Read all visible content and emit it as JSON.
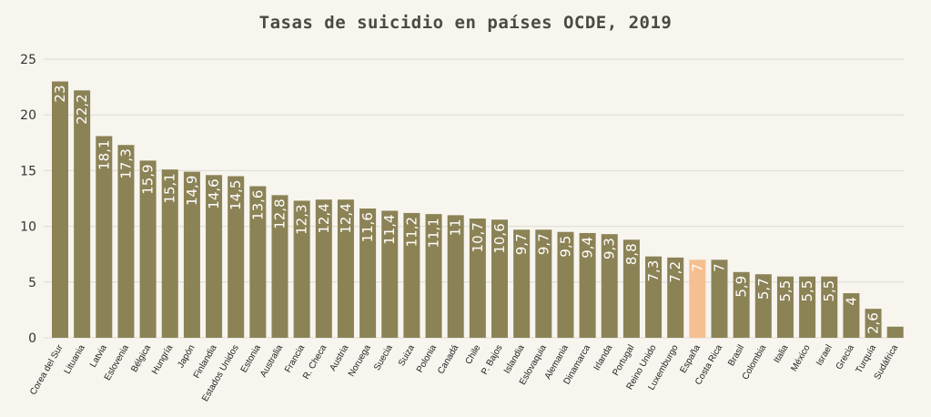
{
  "chart_data": {
    "type": "bar",
    "title": "Tasas de suicidio en países OCDE, 2019",
    "xlabel": "",
    "ylabel": "",
    "ylim": [
      0,
      25
    ],
    "yticks": [
      0,
      5,
      10,
      15,
      20,
      25
    ],
    "grid": true,
    "categories": [
      "Corea del Sur",
      "Lituania",
      "Latvia",
      "Eslovenia",
      "Bélgica",
      "Hungría",
      "Japón",
      "Finlandia",
      "Estados Unidos",
      "Estonia",
      "Australia",
      "Francia",
      "R. Checa",
      "Austria",
      "Noruega",
      "Suecia",
      "Suiza",
      "Polonia",
      "Canadá",
      "Chile",
      "P. Bajos",
      "Islandia",
      "Eslovaquia",
      "Alemania",
      "Dinamarca",
      "Irlanda",
      "Portugal",
      "Reino Unido",
      "Luxemburgo",
      "España",
      "Costa Rica",
      "Brasil",
      "Colombia",
      "Italia",
      "México",
      "Israel",
      "Grecia",
      "Turquía",
      "Sudáfrica"
    ],
    "values": [
      23,
      22.2,
      18.1,
      17.3,
      15.9,
      15.1,
      14.9,
      14.6,
      14.5,
      13.6,
      12.8,
      12.3,
      12.4,
      12.4,
      11.6,
      11.4,
      11.2,
      11.1,
      11,
      10.7,
      10.6,
      9.7,
      9.7,
      9.5,
      9.4,
      9.3,
      8.8,
      7.3,
      7.2,
      7,
      7,
      5.9,
      5.7,
      5.5,
      5.5,
      5.5,
      4,
      2.6,
      1
    ],
    "value_labels": [
      "23",
      "22,2",
      "18,1",
      "17,3",
      "15,9",
      "15,1",
      "14,9",
      "14,6",
      "14,5",
      "13,6",
      "12,8",
      "12,3",
      "12,4",
      "12,4",
      "11,6",
      "11,4",
      "11,2",
      "11,1",
      "11",
      "10,7",
      "10,6",
      "9,7",
      "9,7",
      "9,5",
      "9,4",
      "9,3",
      "8,8",
      "7,3",
      "7,2",
      "7",
      "7",
      "5,9",
      "5,7",
      "5,5",
      "5,5",
      "5,5",
      "4",
      "2,6",
      ""
    ],
    "colors": {
      "bar": "#8b8256",
      "highlight": "#f6bf90",
      "grid": "#dcdcd4"
    },
    "highlight_category": "España"
  }
}
